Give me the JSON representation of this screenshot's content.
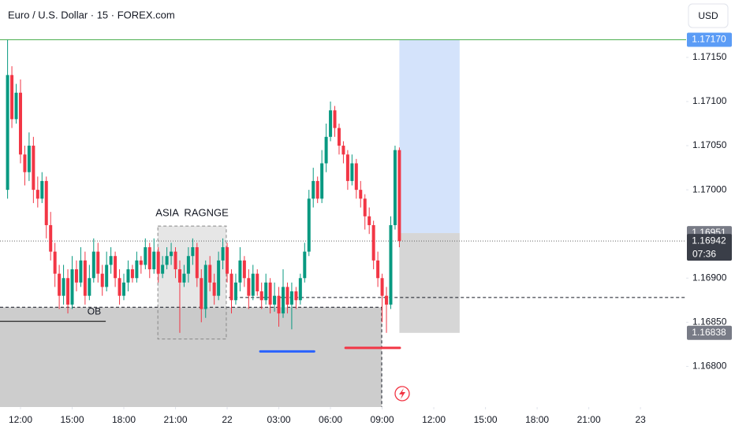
{
  "chart_data": {
    "type": "candlestick",
    "title": "Euro / U.S. Dollar · 15 · FOREX.com",
    "currency": "USD",
    "up_color": "#089981",
    "down_color": "#f23645",
    "grid": false,
    "xlim": [
      -4.76,
      154.6
    ],
    "ylim": [
      1.16754,
      1.17215
    ],
    "xticks": [
      {
        "value": 0,
        "label": "12:00"
      },
      {
        "value": 12,
        "label": "15:00"
      },
      {
        "value": 24,
        "label": "18:00"
      },
      {
        "value": 36,
        "label": "21:00"
      },
      {
        "value": 48,
        "label": "22"
      },
      {
        "value": 60,
        "label": "03:00"
      },
      {
        "value": 72,
        "label": "06:00"
      },
      {
        "value": 84,
        "label": "09:00"
      },
      {
        "value": 96,
        "label": "12:00"
      },
      {
        "value": 108,
        "label": "15:00"
      },
      {
        "value": 120,
        "label": "18:00"
      },
      {
        "value": 132,
        "label": "21:00"
      },
      {
        "value": 144,
        "label": "23"
      }
    ],
    "yticks": [
      {
        "value": 1.1715,
        "label": "1.17150"
      },
      {
        "value": 1.171,
        "label": "1.17100"
      },
      {
        "value": 1.1705,
        "label": "1.17050"
      },
      {
        "value": 1.17,
        "label": "1.17000"
      },
      {
        "value": 1.169,
        "label": "1.16900"
      },
      {
        "value": 1.1685,
        "label": "1.16850"
      },
      {
        "value": 1.168,
        "label": "1.16800"
      }
    ],
    "x": [
      -3,
      -2,
      -1,
      0,
      1,
      2,
      3,
      4,
      5,
      6,
      7,
      8,
      9,
      10,
      11,
      12,
      13,
      14,
      15,
      16,
      17,
      18,
      19,
      20,
      21,
      22,
      23,
      24,
      25,
      26,
      27,
      28,
      29,
      30,
      31,
      32,
      33,
      34,
      35,
      36,
      37,
      38,
      39,
      40,
      41,
      42,
      43,
      44,
      45,
      46,
      47,
      48,
      49,
      50,
      51,
      52,
      53,
      54,
      55,
      56,
      57,
      58,
      59,
      60,
      61,
      62,
      63,
      64,
      65,
      66,
      67,
      68,
      69,
      70,
      71,
      72,
      73,
      74,
      75,
      76,
      77,
      78,
      79,
      80,
      81,
      82,
      83,
      84,
      85,
      86,
      87,
      88
    ],
    "open": [
      1.17,
      1.1713,
      1.1708,
      1.1711,
      1.1704,
      1.1702,
      1.1705,
      1.17,
      1.1699,
      1.1701,
      1.1696,
      1.1693,
      1.16905,
      1.1688,
      1.169,
      1.1687,
      1.1691,
      1.16895,
      1.1692,
      1.1688,
      1.169,
      1.1693,
      1.16905,
      1.1689,
      1.16915,
      1.16925,
      1.169,
      1.1688,
      1.16895,
      1.1691,
      1.169,
      1.1692,
      1.16915,
      1.16935,
      1.1691,
      1.1693,
      1.16905,
      1.16915,
      1.16925,
      1.1693,
      1.1691,
      1.16895,
      1.16905,
      1.16925,
      1.16935,
      1.169,
      1.16865,
      1.16915,
      1.16895,
      1.1688,
      1.1692,
      1.16935,
      1.16905,
      1.16875,
      1.16895,
      1.1692,
      1.169,
      1.1688,
      1.16905,
      1.16885,
      1.16875,
      1.16895,
      1.1687,
      1.1688,
      1.1686,
      1.1689,
      1.1687,
      1.16885,
      1.16875,
      1.169,
      1.1693,
      1.1699,
      1.1701,
      1.1699,
      1.1703,
      1.1706,
      1.1709,
      1.1707,
      1.1705,
      1.1704,
      1.1701,
      1.1703,
      1.17,
      1.1699,
      1.1697,
      1.1696,
      1.1692,
      1.169,
      1.1688,
      1.1687,
      1.1696,
      1.17045
    ],
    "high": [
      1.1717,
      1.1714,
      1.1712,
      1.17125,
      1.1705,
      1.17065,
      1.1706,
      1.17015,
      1.1702,
      1.17015,
      1.16975,
      1.1694,
      1.16915,
      1.16915,
      1.1691,
      1.16925,
      1.1692,
      1.16935,
      1.1693,
      1.16915,
      1.16945,
      1.1694,
      1.16915,
      1.1693,
      1.16935,
      1.1693,
      1.1691,
      1.16905,
      1.1692,
      1.16915,
      1.1693,
      1.16925,
      1.16945,
      1.1694,
      1.16945,
      1.16935,
      1.16925,
      1.16935,
      1.1694,
      1.16935,
      1.1692,
      1.16915,
      1.16935,
      1.16945,
      1.1694,
      1.1691,
      1.1692,
      1.16925,
      1.16905,
      1.1693,
      1.16945,
      1.1694,
      1.1691,
      1.16905,
      1.16935,
      1.16925,
      1.1691,
      1.16915,
      1.1691,
      1.16895,
      1.16905,
      1.169,
      1.16895,
      1.1689,
      1.1691,
      1.16895,
      1.16895,
      1.1689,
      1.16905,
      1.1694,
      1.17,
      1.17025,
      1.17015,
      1.17045,
      1.17075,
      1.171,
      1.17095,
      1.17075,
      1.17055,
      1.17045,
      1.1704,
      1.17035,
      1.1701,
      1.16995,
      1.1698,
      1.16965,
      1.1693,
      1.16905,
      1.1689,
      1.1697,
      1.1705,
      1.17048
    ],
    "low": [
      1.1699,
      1.1707,
      1.17075,
      1.1703,
      1.17005,
      1.1701,
      1.16985,
      1.1698,
      1.16985,
      1.16945,
      1.1692,
      1.1689,
      1.16865,
      1.1687,
      1.1686,
      1.16865,
      1.16885,
      1.1689,
      1.1687,
      1.16875,
      1.16895,
      1.16895,
      1.1688,
      1.16885,
      1.16905,
      1.1689,
      1.1687,
      1.16875,
      1.16885,
      1.16895,
      1.16895,
      1.16905,
      1.1691,
      1.169,
      1.16905,
      1.16895,
      1.169,
      1.1691,
      1.16915,
      1.169,
      1.16838,
      1.1689,
      1.16895,
      1.16915,
      1.1689,
      1.1685,
      1.16855,
      1.16885,
      1.1687,
      1.16875,
      1.1691,
      1.16895,
      1.1686,
      1.1687,
      1.16885,
      1.1689,
      1.16865,
      1.16875,
      1.1688,
      1.16865,
      1.1687,
      1.1686,
      1.16862,
      1.16845,
      1.16855,
      1.1686,
      1.16842,
      1.16865,
      1.1687,
      1.16895,
      1.16925,
      1.1698,
      1.16985,
      1.16985,
      1.1702,
      1.17055,
      1.1706,
      1.1704,
      1.1703,
      1.17,
      1.17005,
      1.1699,
      1.1698,
      1.16955,
      1.1695,
      1.1691,
      1.1689,
      1.1685,
      1.16838,
      1.16865,
      1.16955,
      1.16935
    ],
    "close": [
      1.1713,
      1.1708,
      1.1711,
      1.1704,
      1.1702,
      1.1705,
      1.17,
      1.1699,
      1.1701,
      1.1696,
      1.1693,
      1.16905,
      1.1688,
      1.169,
      1.1687,
      1.1691,
      1.16895,
      1.1692,
      1.1688,
      1.169,
      1.1693,
      1.16905,
      1.1689,
      1.16915,
      1.16925,
      1.169,
      1.1688,
      1.16895,
      1.1691,
      1.169,
      1.1692,
      1.16915,
      1.16935,
      1.1691,
      1.1693,
      1.16905,
      1.16915,
      1.16925,
      1.1693,
      1.1691,
      1.16895,
      1.16905,
      1.16925,
      1.16935,
      1.169,
      1.16865,
      1.16915,
      1.16895,
      1.1688,
      1.1692,
      1.16935,
      1.16905,
      1.16875,
      1.16895,
      1.1692,
      1.169,
      1.1688,
      1.16905,
      1.16885,
      1.16875,
      1.16895,
      1.1687,
      1.1688,
      1.1686,
      1.1689,
      1.1687,
      1.16885,
      1.16875,
      1.169,
      1.1693,
      1.1699,
      1.1701,
      1.1699,
      1.1703,
      1.1706,
      1.1709,
      1.1707,
      1.1705,
      1.1704,
      1.1701,
      1.1703,
      1.17,
      1.1699,
      1.1697,
      1.1696,
      1.1692,
      1.169,
      1.1688,
      1.1687,
      1.1696,
      1.17045,
      1.16942
    ],
    "levels": {
      "target": {
        "value": 1.1717,
        "label": "1.17170"
      },
      "entry": {
        "value": 1.16951,
        "label": "1.16951"
      },
      "price": {
        "value": 1.16942,
        "label": "1.16942"
      },
      "countdown": "07:36",
      "stop": {
        "value": 1.16838,
        "label": "1.16838"
      }
    },
    "position": {
      "x": [
        88,
        102
      ]
    },
    "ob_zone": {
      "label": "OB",
      "top": 1.16867,
      "x_end": 83.9,
      "line": 1.16851,
      "line_x_end": 19.8
    },
    "asia_range": {
      "label": "ASIA  RAGNGE",
      "x": [
        31.9,
        47.8
      ],
      "top": 1.16959,
      "bottom": 1.16831
    },
    "dashed_level": {
      "value": 1.16878,
      "x_start": 48.4
    },
    "blue_mark": {
      "value": 1.16817,
      "x": [
        55.7,
        68.2
      ]
    },
    "red_mark": {
      "value": 1.16821,
      "x": [
        75.5,
        88.1
      ]
    }
  }
}
